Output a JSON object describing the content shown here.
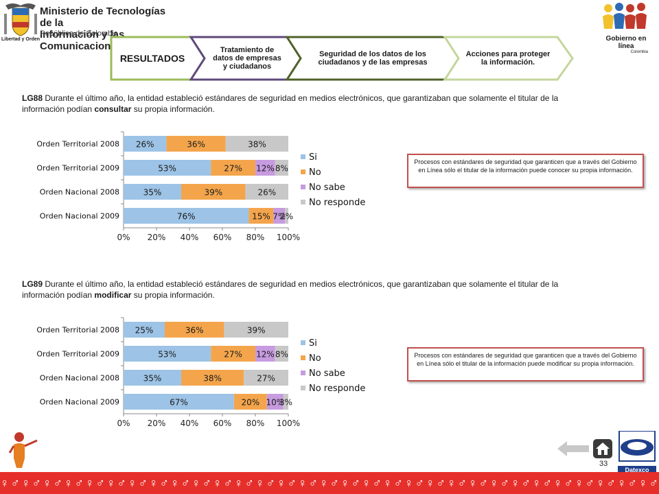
{
  "header": {
    "ministry_title_line1": "Ministerio de Tecnologías de la",
    "ministry_title_line2": "Información y las Comunicaciones",
    "ministry_subtitle": "República de Colombia",
    "crest_motto": "Libertad y Orden",
    "gov_logo_line1": "Gobierno en línea",
    "gov_logo_line2": "Colombia"
  },
  "process_steps": [
    {
      "label": "RESULTADOS",
      "color": "#9bbb59"
    },
    {
      "label": "Tratamiento de datos de empresas y ciudadanos",
      "color": "#5f497a"
    },
    {
      "label": "Seguridad de los datos de los ciudadanos y de las empresas",
      "color": "#4f6228"
    },
    {
      "label": "Acciones para proteger la información.",
      "color": "#c3d69b"
    }
  ],
  "questions": [
    {
      "code": "LG88",
      "text_before": " Durante el último año, la entidad estableció  estándares de seguridad  en medios electrónicos,  que  garantizaban que solamente el titular  de la información podían ",
      "emphasis": "consultar",
      "text_after": "  su propia información.",
      "note": "Procesos con estándares de seguridad que  garanticen que a través del Gobierno en Línea  sólo el titular de la información puede conocer su propia información."
    },
    {
      "code": "LG89",
      "text_before": " Durante el último año, la entidad estableció  estándares de seguridad  en medios electrónicos,  que  garantizaban que solamente el titular  de la información podían ",
      "emphasis": "modificar",
      "text_after": " su propia información.",
      "note": "Procesos con estándares de seguridad que  garanticen que a través del Gobierno en Línea sólo el titular de la información puede modificar su propia información."
    }
  ],
  "chart_data": [
    {
      "type": "bar",
      "orientation": "horizontal",
      "stacked": true,
      "categories": [
        "Orden Territorial 2008",
        "Orden Territorial 2009",
        "Orden Nacional 2008",
        "Orden Nacional 2009"
      ],
      "series": [
        {
          "name": "Si",
          "values": [
            26,
            53,
            35,
            76
          ],
          "labels": [
            "26%",
            "53%",
            "35%",
            "76%"
          ],
          "color": "#9dc3e6"
        },
        {
          "name": "No",
          "values": [
            36,
            27,
            39,
            15
          ],
          "labels": [
            "36%",
            "27%",
            "39%",
            "15%"
          ],
          "color": "#f4a54c"
        },
        {
          "name": "No sabe",
          "values": [
            0,
            12,
            0,
            7
          ],
          "labels": [
            "",
            "12%",
            "",
            "7%"
          ],
          "color": "#c79be0"
        },
        {
          "name": "No responde",
          "values": [
            38,
            8,
            26,
            2
          ],
          "labels": [
            "38%",
            "8%",
            "26%",
            "2%"
          ],
          "color": "#c8c8c8"
        }
      ],
      "xlim": [
        0,
        100
      ],
      "xticks": [
        "0%",
        "20%",
        "40%",
        "60%",
        "80%",
        "100%"
      ],
      "legend": "right",
      "grid": false
    },
    {
      "type": "bar",
      "orientation": "horizontal",
      "stacked": true,
      "categories": [
        "Orden Territorial 2008",
        "Orden Territorial 2009",
        "Orden Nacional 2008",
        "Orden Nacional 2009"
      ],
      "series": [
        {
          "name": "Si",
          "values": [
            25,
            53,
            35,
            67
          ],
          "labels": [
            "25%",
            "53%",
            "35%",
            "67%"
          ],
          "color": "#9dc3e6"
        },
        {
          "name": "No",
          "values": [
            36,
            27,
            38,
            20
          ],
          "labels": [
            "36%",
            "27%",
            "38%",
            "20%"
          ],
          "color": "#f4a54c"
        },
        {
          "name": "No sabe",
          "values": [
            0,
            12,
            0,
            10
          ],
          "labels": [
            "",
            "12%",
            "",
            "10%"
          ],
          "color": "#c79be0"
        },
        {
          "name": "No responde",
          "values": [
            39,
            8,
            27,
            3
          ],
          "labels": [
            "39%",
            "8%",
            "27%",
            "3%"
          ],
          "color": "#c8c8c8"
        }
      ],
      "xlim": [
        0,
        100
      ],
      "xticks": [
        "0%",
        "20%",
        "40%",
        "60%",
        "80%",
        "100%"
      ],
      "legend": "right",
      "grid": false
    }
  ],
  "footer": {
    "page_number": "33",
    "back_arrow_icon": "left-arrow-icon",
    "home_icon": "home-icon",
    "brand": "Datexco"
  }
}
